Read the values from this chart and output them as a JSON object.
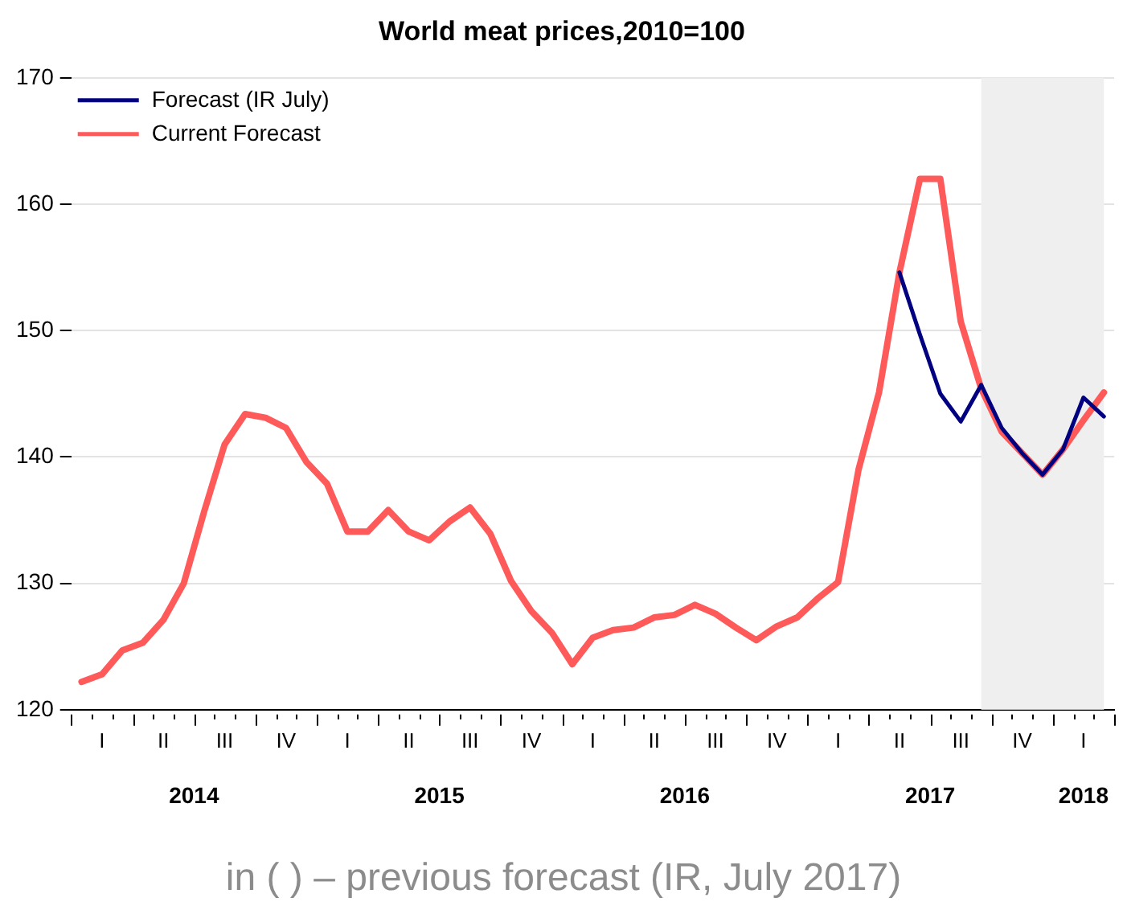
{
  "chart_data": {
    "type": "line",
    "title": "World meat prices,2010=100",
    "categories": [
      null,
      "I",
      null,
      null,
      "II",
      null,
      null,
      "III",
      null,
      null,
      "IV",
      null,
      null,
      "I",
      null,
      null,
      "II",
      null,
      null,
      "III",
      null,
      null,
      "IV",
      null,
      null,
      "I",
      null,
      null,
      "II",
      null,
      null,
      "III",
      null,
      null,
      "IV",
      null,
      null,
      "I",
      null,
      null,
      "II",
      null,
      null,
      "III",
      null,
      null,
      "IV",
      null,
      null,
      "I",
      null
    ],
    "series": [
      {
        "name": "Forecast (IR July)",
        "color": "#000080",
        "values": [
          null,
          null,
          null,
          null,
          null,
          null,
          null,
          null,
          null,
          null,
          null,
          null,
          null,
          null,
          null,
          null,
          null,
          null,
          null,
          null,
          null,
          null,
          null,
          null,
          null,
          null,
          null,
          null,
          null,
          null,
          null,
          null,
          null,
          null,
          null,
          null,
          null,
          null,
          null,
          null,
          154.6,
          149.7,
          145.0,
          142.8,
          145.7,
          142.3,
          140.3,
          138.6,
          140.6,
          144.7,
          143.2
        ]
      },
      {
        "name": "Current Forecast",
        "color": "#ff5a5a",
        "values": [
          122.2,
          122.8,
          124.7,
          125.3,
          127.1,
          130.0,
          135.7,
          141.0,
          143.4,
          143.1,
          142.3,
          139.6,
          137.9,
          134.1,
          134.1,
          135.8,
          134.1,
          133.4,
          134.9,
          136.0,
          133.9,
          130.2,
          127.8,
          126.1,
          123.6,
          125.7,
          126.3,
          126.5,
          127.3,
          127.5,
          128.3,
          127.6,
          126.5,
          125.5,
          126.6,
          127.3,
          128.8,
          130.1,
          139.0,
          145.1,
          154.6,
          162.0,
          162.0,
          150.7,
          145.4,
          142.0,
          140.3,
          138.6,
          140.6,
          142.9,
          145.1
        ]
      }
    ],
    "ylim": [
      120,
      170
    ],
    "yticks": [
      120,
      130,
      140,
      150,
      160,
      170
    ],
    "annotations": [
      "2014",
      "2015",
      "2016",
      "2017",
      "2018",
      "in ( ) – previous forecast (IR, July 2017)"
    ],
    "grid": "y",
    "legend": "top left",
    "line_style": "solid",
    "marker": "none"
  }
}
